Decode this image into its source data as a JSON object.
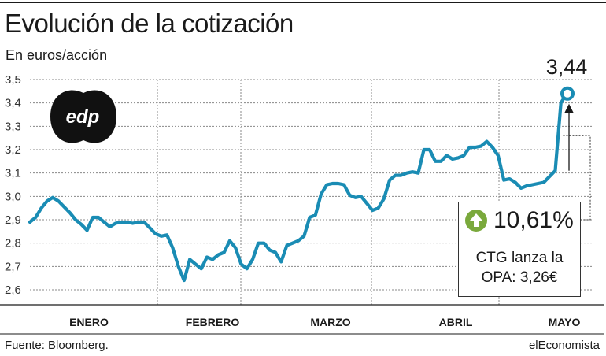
{
  "header": {
    "title": "Evolución de la cotización",
    "subtitle": "En euros/acción"
  },
  "logo": {
    "text": "edp"
  },
  "footer": {
    "source": "Fuente: Bloomberg.",
    "brand": "elEconomista"
  },
  "callout": {
    "percent": "10,61%",
    "note_line1": "CTG lanza la",
    "note_line2": "OPA: 3,26€",
    "icon": "arrow-up-circle-icon"
  },
  "colors": {
    "line": "#1a8cb4",
    "marker_fill": "#ffffff",
    "badge": "#7aa93c",
    "grid": "#888888"
  },
  "chart_data": {
    "type": "line",
    "title": "Evolución de la cotización",
    "ylabel": "En euros/acción",
    "ylim": [
      2.6,
      3.5
    ],
    "yticks": [
      {
        "value": 2.6,
        "label": "2,6"
      },
      {
        "value": 2.7,
        "label": "2,7"
      },
      {
        "value": 2.8,
        "label": "2,8"
      },
      {
        "value": 2.9,
        "label": "2,9"
      },
      {
        "value": 3.0,
        "label": "3,0"
      },
      {
        "value": 3.1,
        "label": "3,1"
      },
      {
        "value": 3.2,
        "label": "3,2"
      },
      {
        "value": 3.3,
        "label": "3,3"
      },
      {
        "value": 3.4,
        "label": "3,4"
      },
      {
        "value": 3.5,
        "label": "3,5"
      }
    ],
    "months": [
      "ENERO",
      "FEBRERO",
      "MARZO",
      "ABRIL",
      "MAYO"
    ],
    "grid": true,
    "last_value": 3.44,
    "last_value_label": "3,44",
    "series": [
      {
        "values": [
          2.89,
          2.91,
          2.95,
          2.98,
          2.995,
          2.98,
          2.955,
          2.93,
          2.9,
          2.88,
          2.855,
          2.91,
          2.91,
          2.89,
          2.87,
          2.885,
          2.89,
          2.89,
          2.885,
          2.89,
          2.89,
          2.865,
          2.84,
          2.83,
          2.835,
          2.78,
          2.7,
          2.64,
          2.73,
          2.71,
          2.69,
          2.74,
          2.73,
          2.75,
          2.76,
          2.81,
          2.78,
          2.71,
          2.69,
          2.73,
          2.8,
          2.8,
          2.77,
          2.76,
          2.72,
          2.79,
          2.8,
          2.81,
          2.83,
          2.91,
          2.92,
          3.01,
          3.05,
          3.055,
          3.055,
          3.05,
          3.005,
          2.995,
          3.0,
          2.97,
          2.94,
          2.95,
          2.99,
          3.07,
          3.09,
          3.09,
          3.1,
          3.105,
          3.1,
          3.2,
          3.2,
          3.15,
          3.15,
          3.175,
          3.16,
          3.165,
          3.175,
          3.21,
          3.21,
          3.215,
          3.235,
          3.21,
          3.175,
          3.07,
          3.075,
          3.06,
          3.035,
          3.045,
          3.05,
          3.055,
          3.06,
          3.085,
          3.11,
          3.4,
          3.44
        ]
      }
    ]
  }
}
